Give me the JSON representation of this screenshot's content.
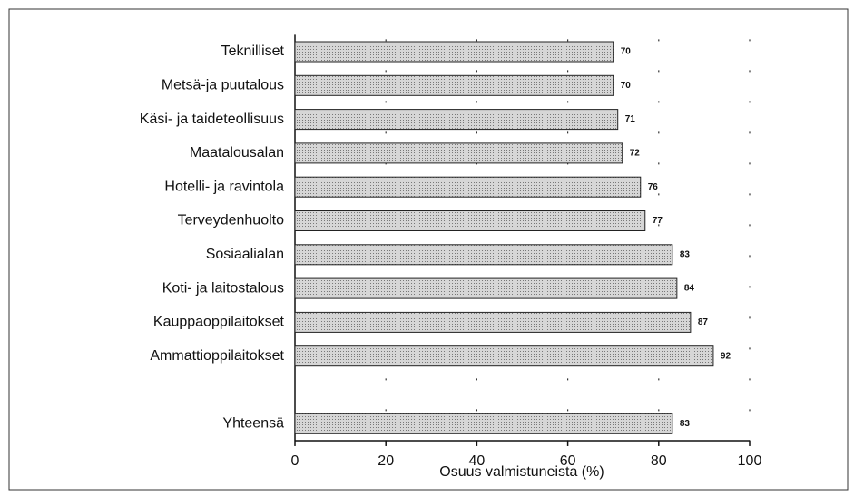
{
  "chart_data": {
    "type": "barh",
    "categories": [
      "Teknilliset",
      "Metsä-ja puutalous",
      "Käsi- ja taideteollisuus",
      "Maatalousalan",
      "Hotelli- ja ravintola",
      "Terveydenhuolto",
      "Sosiaalialan",
      "Koti- ja laitostalous",
      "Kauppaoppilaitokset",
      "Ammattioppilaitokset",
      null,
      "Yhteensä"
    ],
    "values": [
      70,
      70,
      71,
      72,
      76,
      77,
      83,
      84,
      87,
      92,
      null,
      83
    ],
    "color": "#bdbdbd",
    "xlabel": "Osuus valmistuneista (%)",
    "xlim": [
      0,
      100
    ],
    "xticks": [
      0,
      20,
      40,
      60,
      80,
      100
    ],
    "grid": true
  }
}
